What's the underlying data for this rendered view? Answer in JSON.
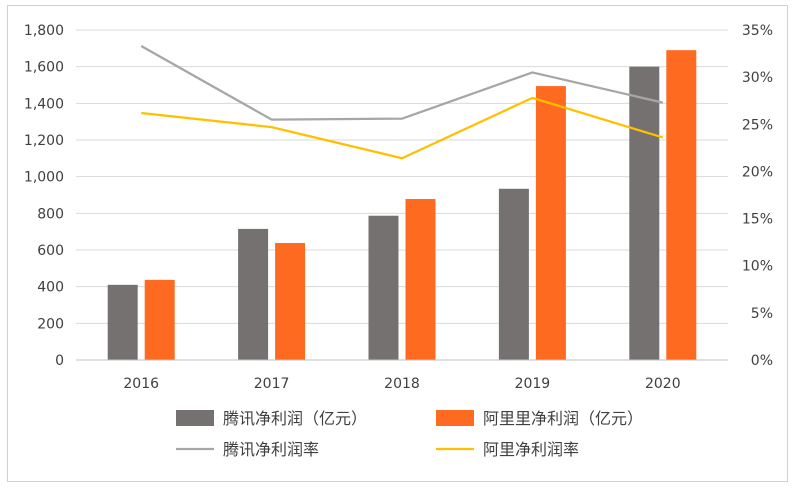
{
  "chart_data": {
    "type": "bar",
    "categories": [
      "2016",
      "2017",
      "2018",
      "2019",
      "2020"
    ],
    "series": [
      {
        "name": "腾讯净利润（亿元）",
        "kind": "bar",
        "axis": "left",
        "color": "#767171",
        "values": [
          410,
          715,
          787,
          934,
          1600
        ]
      },
      {
        "name": "阿里里净利润（亿元）",
        "kind": "bar",
        "axis": "left",
        "color": "#ff6a21",
        "values": [
          437,
          638,
          878,
          1494,
          1690
        ]
      },
      {
        "name": "腾讯净利润率",
        "kind": "line",
        "axis": "right",
        "color": "#a6a6a6",
        "values": [
          0.333,
          0.255,
          0.256,
          0.305,
          0.273
        ]
      },
      {
        "name": "阿里净利润率",
        "kind": "line",
        "axis": "right",
        "color": "#ffc000",
        "values": [
          0.262,
          0.247,
          0.214,
          0.278,
          0.236
        ]
      }
    ],
    "y_left": {
      "ylim": [
        0,
        1800
      ],
      "ticks": [
        "0",
        "200",
        "400",
        "600",
        "800",
        "1,000",
        "1,200",
        "1,400",
        "1,600",
        "1,800"
      ]
    },
    "y_right": {
      "ylim": [
        0,
        0.35
      ],
      "ticks": [
        "0%",
        "5%",
        "10%",
        "15%",
        "20%",
        "25%",
        "30%",
        "35%"
      ]
    },
    "grid": true,
    "legend_position": "bottom"
  }
}
